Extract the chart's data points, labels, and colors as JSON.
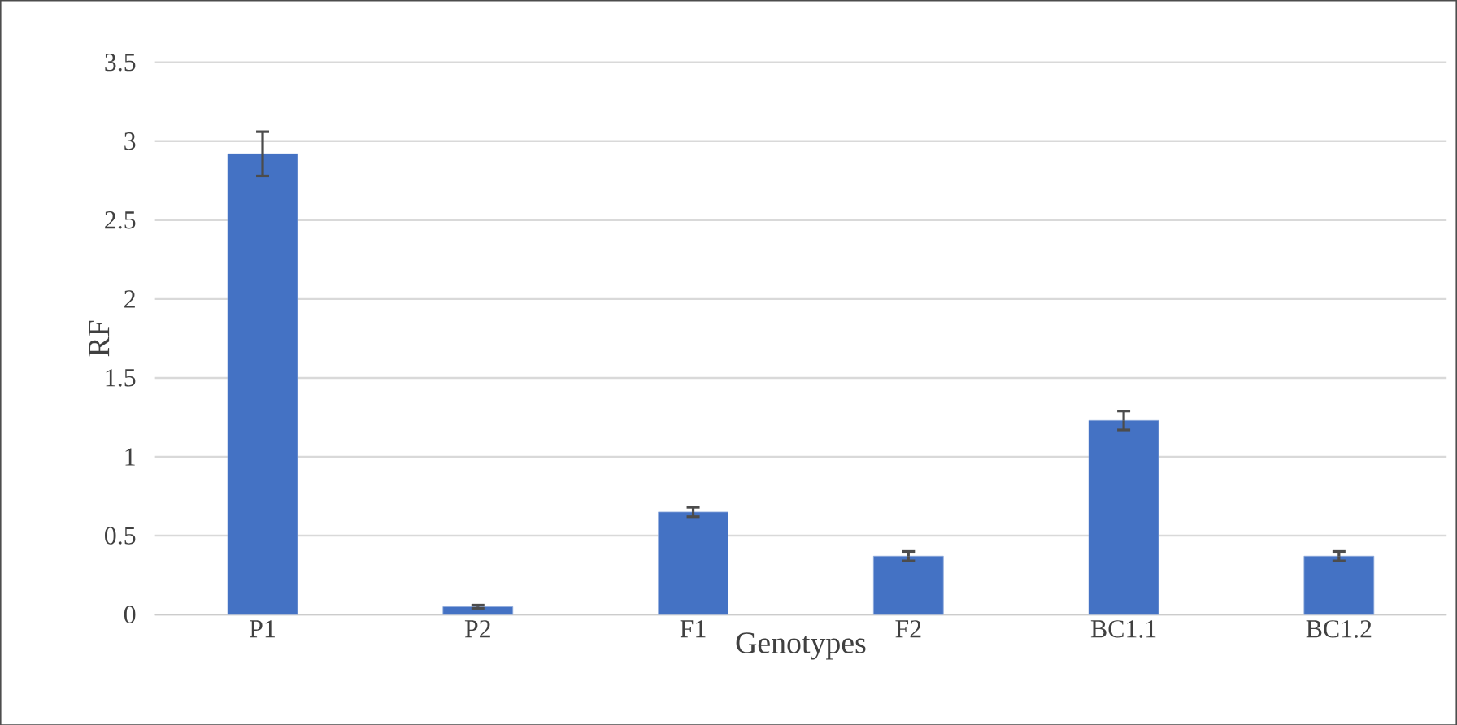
{
  "chart_data": {
    "type": "bar",
    "xlabel": "Genotypes",
    "ylabel": "RF",
    "categories": [
      "P1",
      "P2",
      "F1",
      "F2",
      "BC1.1",
      "BC1.2"
    ],
    "values": [
      2.92,
      0.05,
      0.65,
      0.37,
      1.23,
      0.37
    ],
    "errors": [
      0.14,
      0.01,
      0.03,
      0.03,
      0.06,
      0.03
    ],
    "color": "#4472c4",
    "ylim": [
      0,
      3.5
    ],
    "yticks": [
      0,
      0.5,
      1,
      1.5,
      2,
      2.5,
      3,
      3.5
    ],
    "grid": "y"
  }
}
